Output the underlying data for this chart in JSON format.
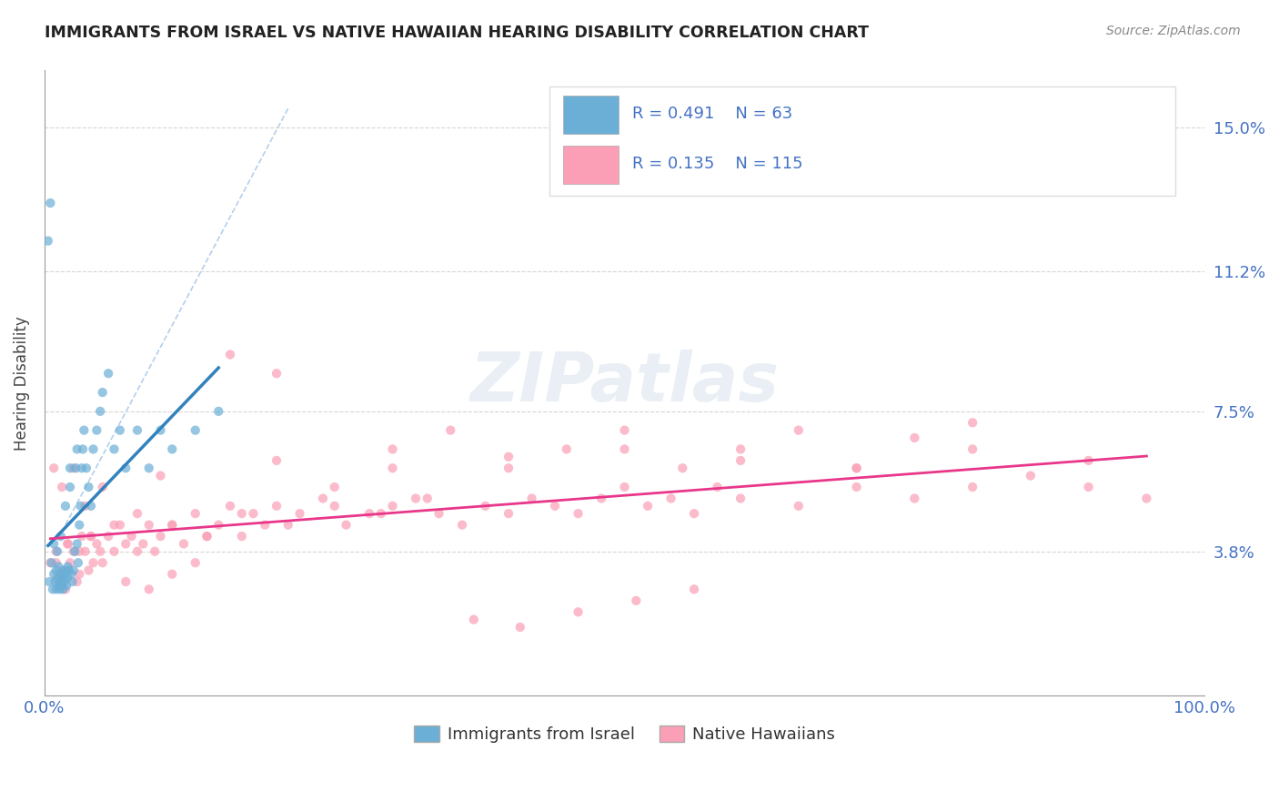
{
  "title": "IMMIGRANTS FROM ISRAEL VS NATIVE HAWAIIAN HEARING DISABILITY CORRELATION CHART",
  "source": "Source: ZipAtlas.com",
  "xlabel": "",
  "ylabel": "Hearing Disability",
  "xlim": [
    0.0,
    1.0
  ],
  "ylim": [
    0.0,
    0.165
  ],
  "yticks": [
    0.038,
    0.075,
    0.112,
    0.15
  ],
  "ytick_labels": [
    "3.8%",
    "7.5%",
    "11.2%",
    "15.0%"
  ],
  "xticks": [
    0.0,
    1.0
  ],
  "xtick_labels": [
    "0.0%",
    "100.0%"
  ],
  "grid_color": "#cccccc",
  "background_color": "#ffffff",
  "israel_color": "#6baed6",
  "hawaii_color": "#fa9fb5",
  "israel_R": 0.491,
  "israel_N": 63,
  "hawaii_R": 0.135,
  "hawaii_N": 115,
  "legend_label_israel": "Immigrants from Israel",
  "legend_label_hawaii": "Native Hawaiians",
  "watermark": "ZIPatlas",
  "israel_scatter_x": [
    0.004,
    0.006,
    0.007,
    0.008,
    0.009,
    0.01,
    0.01,
    0.011,
    0.012,
    0.012,
    0.013,
    0.013,
    0.014,
    0.015,
    0.015,
    0.016,
    0.016,
    0.017,
    0.017,
    0.018,
    0.018,
    0.019,
    0.02,
    0.02,
    0.021,
    0.022,
    0.023,
    0.024,
    0.025,
    0.026,
    0.027,
    0.028,
    0.029,
    0.03,
    0.031,
    0.032,
    0.033,
    0.034,
    0.036,
    0.038,
    0.04,
    0.042,
    0.045,
    0.048,
    0.05,
    0.055,
    0.06,
    0.065,
    0.07,
    0.08,
    0.09,
    0.1,
    0.11,
    0.13,
    0.15,
    0.003,
    0.005,
    0.008,
    0.011,
    0.014,
    0.018,
    0.022,
    0.028
  ],
  "israel_scatter_y": [
    0.03,
    0.035,
    0.028,
    0.032,
    0.03,
    0.033,
    0.028,
    0.031,
    0.029,
    0.034,
    0.028,
    0.03,
    0.032,
    0.031,
    0.029,
    0.033,
    0.028,
    0.031,
    0.03,
    0.033,
    0.032,
    0.029,
    0.034,
    0.031,
    0.033,
    0.055,
    0.032,
    0.03,
    0.033,
    0.038,
    0.06,
    0.04,
    0.035,
    0.045,
    0.05,
    0.06,
    0.065,
    0.07,
    0.06,
    0.055,
    0.05,
    0.065,
    0.07,
    0.075,
    0.08,
    0.085,
    0.065,
    0.07,
    0.06,
    0.07,
    0.06,
    0.07,
    0.065,
    0.07,
    0.075,
    0.12,
    0.13,
    0.04,
    0.038,
    0.042,
    0.05,
    0.06,
    0.065
  ],
  "hawaii_scatter_x": [
    0.005,
    0.01,
    0.012,
    0.015,
    0.018,
    0.02,
    0.022,
    0.025,
    0.028,
    0.03,
    0.032,
    0.035,
    0.038,
    0.04,
    0.042,
    0.045,
    0.048,
    0.05,
    0.055,
    0.06,
    0.065,
    0.07,
    0.075,
    0.08,
    0.085,
    0.09,
    0.095,
    0.1,
    0.11,
    0.12,
    0.13,
    0.14,
    0.15,
    0.16,
    0.17,
    0.18,
    0.19,
    0.2,
    0.22,
    0.24,
    0.26,
    0.28,
    0.3,
    0.32,
    0.34,
    0.36,
    0.38,
    0.4,
    0.42,
    0.44,
    0.46,
    0.48,
    0.5,
    0.52,
    0.54,
    0.56,
    0.58,
    0.6,
    0.65,
    0.7,
    0.75,
    0.8,
    0.85,
    0.9,
    0.95,
    0.008,
    0.015,
    0.025,
    0.035,
    0.05,
    0.07,
    0.09,
    0.11,
    0.13,
    0.16,
    0.2,
    0.25,
    0.3,
    0.35,
    0.4,
    0.45,
    0.5,
    0.55,
    0.6,
    0.65,
    0.7,
    0.75,
    0.8,
    0.1,
    0.2,
    0.3,
    0.4,
    0.5,
    0.6,
    0.7,
    0.8,
    0.9,
    0.01,
    0.02,
    0.03,
    0.04,
    0.06,
    0.08,
    0.11,
    0.14,
    0.17,
    0.21,
    0.25,
    0.29,
    0.33,
    0.37,
    0.41,
    0.46,
    0.51,
    0.56
  ],
  "hawaii_scatter_y": [
    0.035,
    0.038,
    0.03,
    0.032,
    0.028,
    0.04,
    0.035,
    0.038,
    0.03,
    0.032,
    0.042,
    0.038,
    0.033,
    0.042,
    0.035,
    0.04,
    0.038,
    0.035,
    0.042,
    0.038,
    0.045,
    0.04,
    0.042,
    0.038,
    0.04,
    0.045,
    0.038,
    0.042,
    0.045,
    0.04,
    0.048,
    0.042,
    0.045,
    0.05,
    0.042,
    0.048,
    0.045,
    0.05,
    0.048,
    0.052,
    0.045,
    0.048,
    0.05,
    0.052,
    0.048,
    0.045,
    0.05,
    0.048,
    0.052,
    0.05,
    0.048,
    0.052,
    0.055,
    0.05,
    0.052,
    0.048,
    0.055,
    0.052,
    0.05,
    0.055,
    0.052,
    0.055,
    0.058,
    0.055,
    0.052,
    0.06,
    0.055,
    0.06,
    0.05,
    0.055,
    0.03,
    0.028,
    0.032,
    0.035,
    0.09,
    0.085,
    0.055,
    0.065,
    0.07,
    0.06,
    0.065,
    0.07,
    0.06,
    0.065,
    0.07,
    0.06,
    0.068,
    0.072,
    0.058,
    0.062,
    0.06,
    0.063,
    0.065,
    0.062,
    0.06,
    0.065,
    0.062,
    0.035,
    0.04,
    0.038,
    0.042,
    0.045,
    0.048,
    0.045,
    0.042,
    0.048,
    0.045,
    0.05,
    0.048,
    0.052,
    0.02,
    0.018,
    0.022,
    0.025,
    0.028
  ]
}
